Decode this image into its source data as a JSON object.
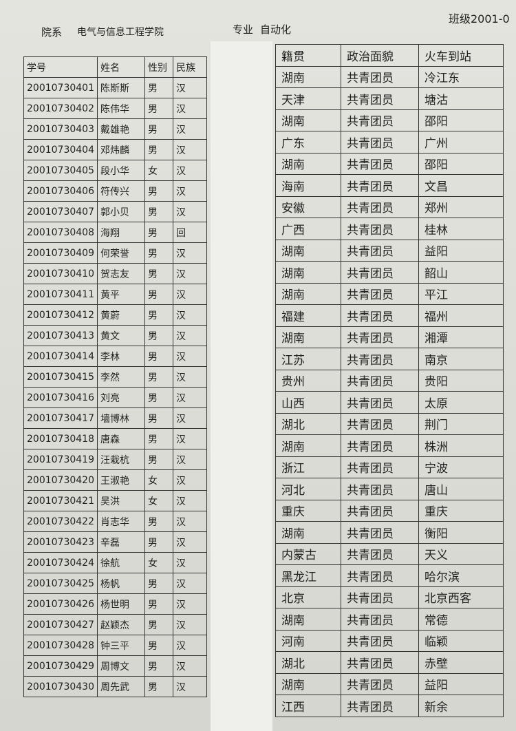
{
  "header": {
    "dept_label": "院系",
    "dept": "电气与信息工程学院",
    "major_label": "专业",
    "major": "自动化",
    "class": "班级2001-0"
  },
  "left_table": {
    "columns": [
      "学号",
      "姓名",
      "性别",
      "民族"
    ],
    "rows": [
      [
        "20010730401",
        "陈斯斯",
        "男",
        "汉"
      ],
      [
        "20010730402",
        "陈伟华",
        "男",
        "汉"
      ],
      [
        "20010730403",
        "戴雄艳",
        "男",
        "汉"
      ],
      [
        "20010730404",
        "邓炜麟",
        "男",
        "汉"
      ],
      [
        "20010730405",
        "段小华",
        "女",
        "汉"
      ],
      [
        "20010730406",
        "符传兴",
        "男",
        "汉"
      ],
      [
        "20010730407",
        "郭小贝",
        "男",
        "汉"
      ],
      [
        "20010730408",
        "海翔",
        "男",
        "回"
      ],
      [
        "20010730409",
        "何荣誉",
        "男",
        "汉"
      ],
      [
        "20010730410",
        "贺志友",
        "男",
        "汉"
      ],
      [
        "20010730411",
        "黄平",
        "男",
        "汉"
      ],
      [
        "20010730412",
        "黄蔚",
        "男",
        "汉"
      ],
      [
        "20010730413",
        "黄文",
        "男",
        "汉"
      ],
      [
        "20010730414",
        "李林",
        "男",
        "汉"
      ],
      [
        "20010730415",
        "李然",
        "男",
        "汉"
      ],
      [
        "20010730416",
        "刘亮",
        "男",
        "汉"
      ],
      [
        "20010730417",
        "墙博林",
        "男",
        "汉"
      ],
      [
        "20010730418",
        "唐森",
        "男",
        "汉"
      ],
      [
        "20010730419",
        "汪栽杭",
        "男",
        "汉"
      ],
      [
        "20010730420",
        "王淑艳",
        "女",
        "汉"
      ],
      [
        "20010730421",
        "吴洪",
        "女",
        "汉"
      ],
      [
        "20010730422",
        "肖志华",
        "男",
        "汉"
      ],
      [
        "20010730423",
        "辛磊",
        "男",
        "汉"
      ],
      [
        "20010730424",
        "徐航",
        "女",
        "汉"
      ],
      [
        "20010730425",
        "杨帆",
        "男",
        "汉"
      ],
      [
        "20010730426",
        "杨世明",
        "男",
        "汉"
      ],
      [
        "20010730427",
        "赵颖杰",
        "男",
        "汉"
      ],
      [
        "20010730428",
        "钟三平",
        "男",
        "汉"
      ],
      [
        "20010730429",
        "周博文",
        "男",
        "汉"
      ],
      [
        "20010730430",
        "周先武",
        "男",
        "汉"
      ]
    ]
  },
  "right_table": {
    "columns": [
      "籍贯",
      "政治面貌",
      "火车到站"
    ],
    "rows": [
      [
        "湖南",
        "共青团员",
        "冷江东"
      ],
      [
        "天津",
        "共青团员",
        "塘沽"
      ],
      [
        "湖南",
        "共青团员",
        "邵阳"
      ],
      [
        "广东",
        "共青团员",
        "广州"
      ],
      [
        "湖南",
        "共青团员",
        "邵阳"
      ],
      [
        "海南",
        "共青团员",
        "文昌"
      ],
      [
        "安徽",
        "共青团员",
        "郑州"
      ],
      [
        "广西",
        "共青团员",
        "桂林"
      ],
      [
        "湖南",
        "共青团员",
        "益阳"
      ],
      [
        "湖南",
        "共青团员",
        "韶山"
      ],
      [
        "湖南",
        "共青团员",
        "平江"
      ],
      [
        "福建",
        "共青团员",
        "福州"
      ],
      [
        "湖南",
        "共青团员",
        "湘潭"
      ],
      [
        "江苏",
        "共青团员",
        "南京"
      ],
      [
        "贵州",
        "共青团员",
        "贵阳"
      ],
      [
        "山西",
        "共青团员",
        "太原"
      ],
      [
        "湖北",
        "共青团员",
        "荆门"
      ],
      [
        "湖南",
        "共青团员",
        "株洲"
      ],
      [
        "浙江",
        "共青团员",
        "宁波"
      ],
      [
        "河北",
        "共青团员",
        "唐山"
      ],
      [
        "重庆",
        "共青团员",
        "重庆"
      ],
      [
        "湖南",
        "共青团员",
        "衡阳"
      ],
      [
        "内蒙古",
        "共青团员",
        "天义"
      ],
      [
        "黑龙江",
        "共青团员",
        "哈尔滨"
      ],
      [
        "北京",
        "共青团员",
        "北京西客"
      ],
      [
        "湖南",
        "共青团员",
        "常德"
      ],
      [
        "河南",
        "共青团员",
        "临颖"
      ],
      [
        "湖北",
        "共青团员",
        "赤壁"
      ],
      [
        "湖南",
        "共青团员",
        "益阳"
      ],
      [
        "江西",
        "共青团员",
        "新余"
      ]
    ]
  }
}
